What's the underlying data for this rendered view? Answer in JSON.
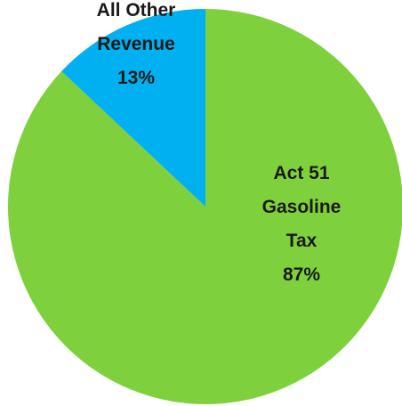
{
  "chart_data": {
    "type": "pie",
    "slices": [
      {
        "label_lines": [
          "Act 51",
          "Gasoline",
          "Tax",
          "87%"
        ],
        "category": "Act 51 Gasoline Tax",
        "value": 87,
        "color": "#7ed13c"
      },
      {
        "label_lines": [
          "All Other",
          "Revenue",
          "13%"
        ],
        "category": "All Other Revenue",
        "value": 13,
        "color": "#00b0f0"
      }
    ]
  }
}
